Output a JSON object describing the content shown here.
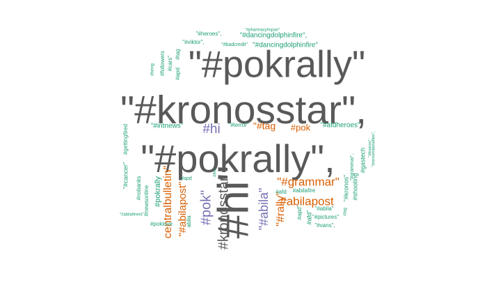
{
  "chart_data": {
    "type": "wordcloud",
    "colors": [
      "#595959",
      "#d95f02",
      "#1b9e77",
      "#7570b3"
    ],
    "words": [
      {
        "text": "\"#pokrally\"",
        "color": "#595959"
      },
      {
        "text": "\"#kronosstar\",",
        "color": "#595959"
      },
      {
        "text": "\"#pokrally\",",
        "color": "#595959"
      },
      {
        "text": "#hi\"",
        "color": "#595959"
      },
      {
        "text": "#hi",
        "color": "#7570b3"
      },
      {
        "text": "#pok\"",
        "color": "#7570b3"
      },
      {
        "text": "\"#abila\"",
        "color": "#7570b3"
      },
      {
        "text": "\"#grammar\"",
        "color": "#d95f02"
      },
      {
        "text": "#abilapost",
        "color": "#d95f02"
      },
      {
        "text": "\"#rally\"",
        "color": "#d95f02"
      },
      {
        "text": "\"#tag",
        "color": "#d95f02"
      },
      {
        "text": "#pok",
        "color": "#d95f02"
      },
      {
        "text": "centralbulletin\"",
        "color": "#d95f02"
      },
      {
        "text": "\"#abilapost\"",
        "color": "#d95f02"
      },
      {
        "text": "#kronosstar",
        "color": "#595959"
      },
      {
        "text": "\"#dancingdolphinfire\",",
        "color": "#1b9e77"
      },
      {
        "text": "\"#dancingdolphinfire\"",
        "color": "#1b9e77"
      },
      {
        "text": "\"#heroes\",",
        "color": "#1b9e77"
      },
      {
        "text": "\"#viktor\",",
        "color": "#1b9e77"
      },
      {
        "text": "\"#badcredit\"",
        "color": "#1b9e77"
      },
      {
        "text": "\"#intnews\"",
        "color": "#1b9e77"
      },
      {
        "text": "\"#terror\"",
        "color": "#1b9e77"
      },
      {
        "text": "\"#afdheroes\"",
        "color": "#1b9e77"
      },
      {
        "text": "#followers",
        "color": "#1b9e77"
      },
      {
        "text": "#cars\"",
        "color": "#1b9e77"
      },
      {
        "text": "#tag",
        "color": "#1b9e77"
      },
      {
        "text": "#apd",
        "color": "#1b9e77"
      },
      {
        "text": "#gettingfired",
        "color": "#1b9e77"
      },
      {
        "text": "\"#cancer\"",
        "color": "#1b9e77"
      },
      {
        "text": "#nobanks",
        "color": "#1b9e77"
      },
      {
        "text": "#newsonline",
        "color": "#1b9e77"
      },
      {
        "text": "#pokrally",
        "color": "#1b9e77"
      },
      {
        "text": "#poklove",
        "color": "#1b9e77"
      },
      {
        "text": "\"#abilafinest\",",
        "color": "#1b9e77"
      },
      {
        "text": "#afd",
        "color": "#1b9e77"
      },
      {
        "text": "#abilafire",
        "color": "#1b9e77"
      },
      {
        "text": "\"#abila\"",
        "color": "#1b9e77"
      },
      {
        "text": "\"#pictures\"",
        "color": "#1b9e77"
      },
      {
        "text": "\"#vans\",",
        "color": "#1b9e77"
      },
      {
        "text": "#afd\"",
        "color": "#1b9e77"
      },
      {
        "text": "#apd\",",
        "color": "#1b9e77"
      },
      {
        "text": "\"#kronos\"",
        "color": "#1b9e77"
      },
      {
        "text": "#shooting",
        "color": "#1b9e77"
      },
      {
        "text": "#gastech",
        "color": "#1b9e77"
      },
      {
        "text": "\"#grammar\",",
        "color": "#1b9e77"
      },
      {
        "text": "#apd",
        "color": "#1b9e77"
      },
      {
        "text": "#fire",
        "color": "#1b9e77"
      },
      {
        "text": "\"#kronos\",",
        "color": "#1b9e77"
      },
      {
        "text": "\"#rememberwhen\",",
        "color": "#1b9e77"
      },
      {
        "text": "#tag",
        "color": "#1b9e77"
      },
      {
        "text": "#hiring",
        "color": "#1b9e77"
      },
      {
        "text": "\"#pharmacyhspan\"",
        "color": "#1b9e77"
      },
      {
        "text": "abila",
        "color": "#1b9e77"
      }
    ]
  }
}
